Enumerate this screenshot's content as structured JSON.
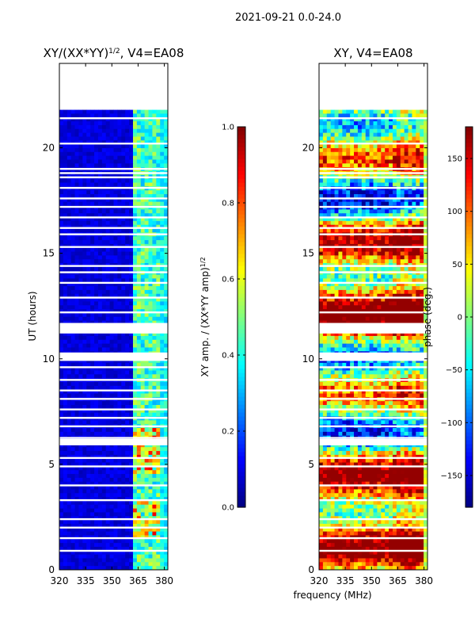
{
  "figure_title": "2021-09-21 0.0-24.0",
  "shared_xlabel": "frequency (MHz)",
  "chart_data": [
    {
      "type": "heatmap",
      "title_base": "XY/(XX*YY)",
      "title_sup": "1/2",
      "title_suffix": ", V4=EA08",
      "xlabel": "",
      "ylabel": "UT (hours)",
      "xlim": [
        320,
        382
      ],
      "ylim": [
        0,
        24
      ],
      "xticks": [
        320,
        335,
        350,
        365,
        380
      ],
      "yticks": [
        0,
        5,
        10,
        15,
        20
      ],
      "data_extent_hours": [
        0,
        21.8
      ],
      "colorbar": {
        "label_base": "XY amp. / (XX*YY amp)",
        "label_sup": "1/2",
        "range": [
          0.0,
          1.0
        ],
        "ticks": [
          "0.0",
          "0.2",
          "0.4",
          "0.6",
          "0.8",
          "1.0"
        ],
        "tick_values": [
          0.0,
          0.2,
          0.4,
          0.6,
          0.8,
          1.0
        ],
        "colormap": "jet"
      }
    },
    {
      "type": "heatmap",
      "title_base": "XY, V4=EA08",
      "xlabel": "",
      "ylabel": "",
      "xlim": [
        320,
        382
      ],
      "ylim": [
        0,
        24
      ],
      "xticks": [
        320,
        335,
        350,
        365,
        380
      ],
      "yticks": [
        0,
        5,
        10,
        15,
        20
      ],
      "data_extent_hours": [
        0,
        21.8
      ],
      "colorbar": {
        "label_base": "phase (deg.)",
        "range": [
          -180,
          180
        ],
        "ticks": [
          "−150",
          "−100",
          "−50",
          "0",
          "50",
          "100",
          "150"
        ],
        "tick_values": [
          -150,
          -100,
          -50,
          0,
          50,
          100,
          150
        ],
        "colormap": "jet"
      }
    }
  ]
}
